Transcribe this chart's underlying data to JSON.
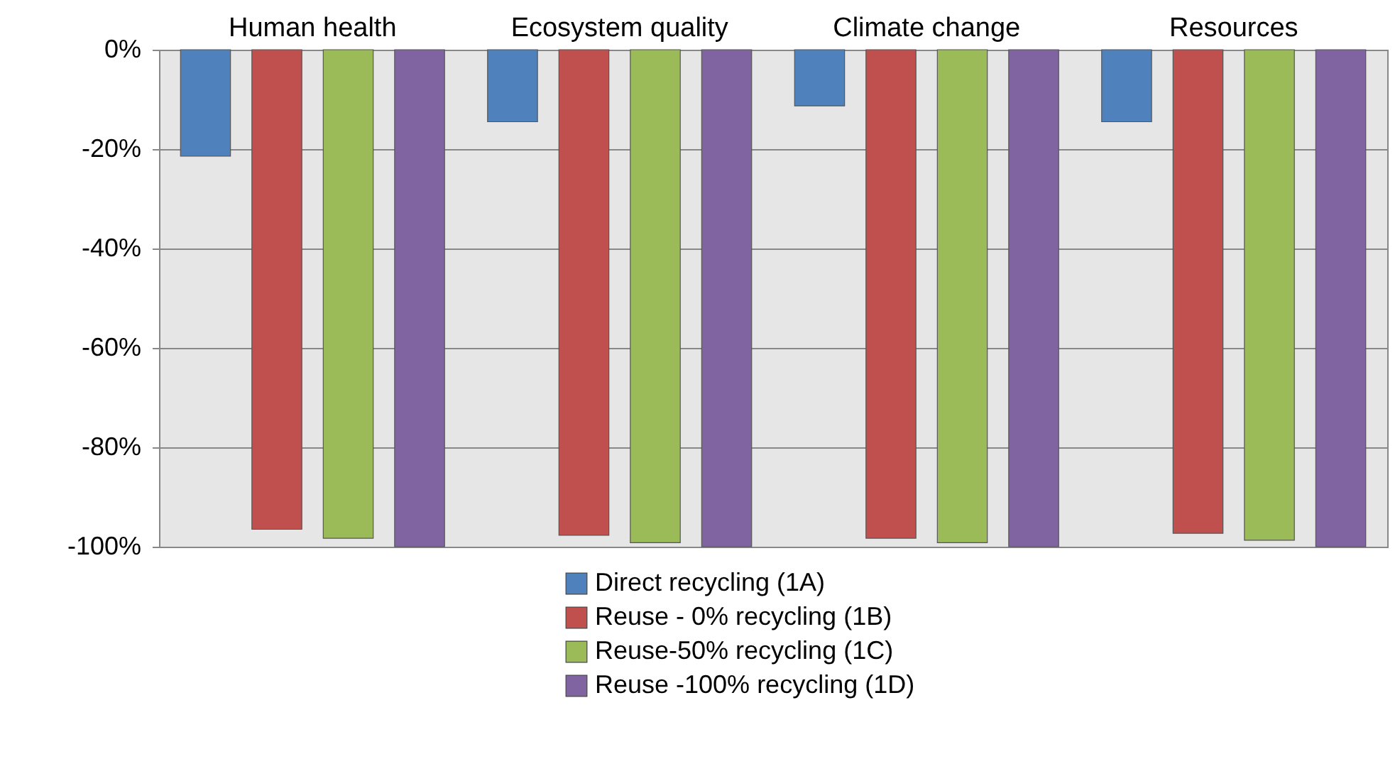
{
  "chart_data": {
    "type": "bar",
    "categories": [
      "Human health",
      "Ecosystem quality",
      "Climate change",
      "Resources"
    ],
    "series": [
      {
        "name": "Direct recycling  (1A)",
        "color": "#4f81bd",
        "values": [
          -21.4,
          -14.5,
          -11.3,
          -14.5
        ]
      },
      {
        "name": "Reuse - 0% recycling (1B)",
        "color": "#c0504d",
        "values": [
          -96.5,
          -97.7,
          -98.3,
          -97.3
        ]
      },
      {
        "name": "Reuse-50% recycling (1C)",
        "color": "#9bbb59",
        "values": [
          -98.3,
          -99.2,
          -99.2,
          -98.7
        ]
      },
      {
        "name": "Reuse -100% recycling (1D)",
        "color": "#8064a2",
        "values": [
          -100,
          -100,
          -100,
          -100
        ]
      }
    ],
    "ylim": [
      -100,
      0
    ],
    "yticks": [
      {
        "value": -100,
        "label": "-100%"
      },
      {
        "value": -80,
        "label": "-80%"
      },
      {
        "value": -60,
        "label": "-60%"
      },
      {
        "value": -40,
        "label": "-40%"
      },
      {
        "value": -20,
        "label": "-20%"
      },
      {
        "value": 0,
        "label": "0%"
      }
    ],
    "grid": "y",
    "legend": "bottom"
  }
}
